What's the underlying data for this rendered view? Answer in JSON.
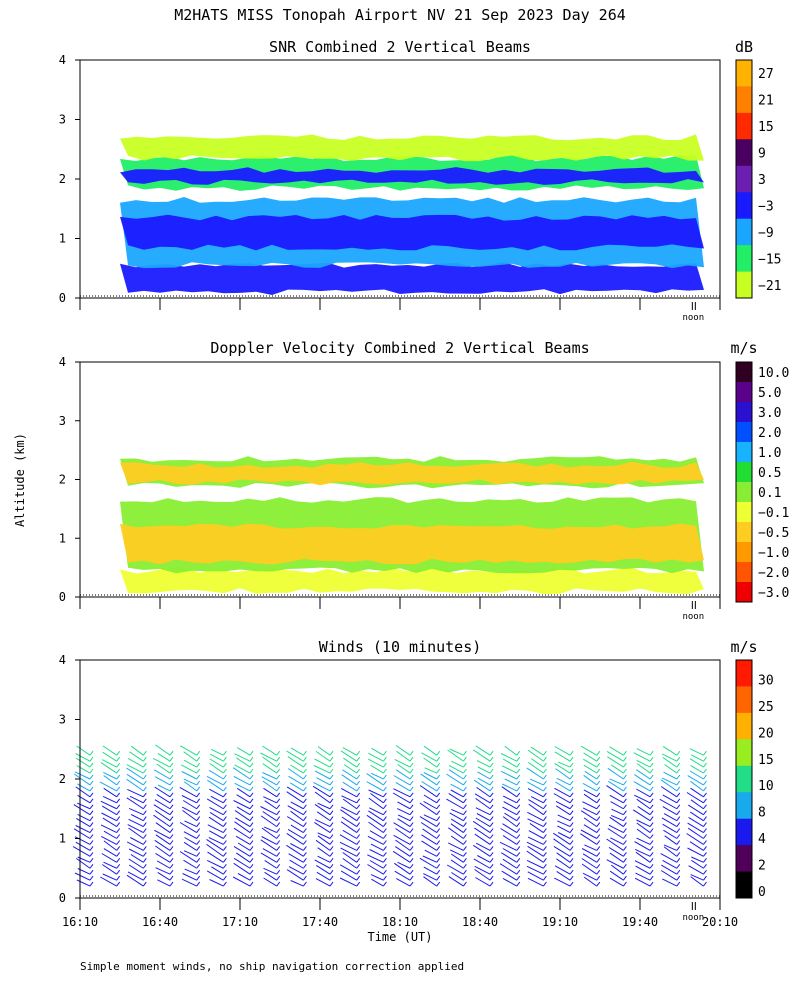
{
  "title": "M2HATS MISS Tonopah Airport NV  21 Sep 2023 Day 264",
  "ylabel": "Altitude (km)",
  "xlabel": "Time (UT)",
  "noon_label": "noon",
  "footnote": "Simple moment winds, no ship navigation correction applied",
  "chart_data": [
    {
      "type": "heatmap",
      "title": "SNR Combined 2 Vertical Beams",
      "units": "dB",
      "x_ticks": [],
      "y_ticks": [
        "0",
        "1",
        "2",
        "3",
        "4"
      ],
      "ylim": [
        0,
        4
      ],
      "x_range_hours": [
        16.1667,
        20.1667
      ],
      "colorbar_labels": [
        "27",
        "21",
        "15",
        "9",
        "3",
        "−3",
        "−9",
        "−15",
        "−21"
      ],
      "colorbar_colors": [
        "#ffb300",
        "#ff8000",
        "#ff2a00",
        "#4a0060",
        "#6a1fb0",
        "#1a1aff",
        "#1aa6ff",
        "#22ee66",
        "#c8ff22"
      ],
      "layers": [
        {
          "bottom": 0.1,
          "top": 0.55,
          "color": "#1a1aff"
        },
        {
          "bottom": 0.55,
          "top": 1.65,
          "color": "#1aa6ff"
        },
        {
          "bottom": 0.85,
          "top": 1.35,
          "color": "#1a1aff"
        },
        {
          "bottom": 1.85,
          "top": 2.35,
          "color": "#22ee66"
        },
        {
          "bottom": 1.95,
          "top": 2.15,
          "color": "#1a1aff"
        },
        {
          "bottom": 2.35,
          "top": 2.7,
          "color": "#c8ff22"
        }
      ]
    },
    {
      "type": "heatmap",
      "title": "Doppler Velocity Combined 2 Vertical Beams",
      "units": "m/s",
      "x_ticks": [],
      "y_ticks": [
        "0",
        "1",
        "2",
        "3",
        "4"
      ],
      "ylim": [
        0,
        4
      ],
      "x_range_hours": [
        16.1667,
        20.1667
      ],
      "colorbar_labels": [
        "10.0",
        "5.0",
        "3.0",
        "2.0",
        "1.0",
        "0.5",
        "0.1",
        "−0.1",
        "−0.5",
        "−1.0",
        "−2.0",
        "−3.0"
      ],
      "colorbar_colors": [
        "#300020",
        "#5a008a",
        "#2a10d0",
        "#0050ff",
        "#19b2ff",
        "#22dd33",
        "#88ee33",
        "#eeff33",
        "#ffcc22",
        "#ff9900",
        "#ff5500",
        "#ee0000"
      ],
      "layers": [
        {
          "bottom": 0.1,
          "top": 0.45,
          "color": "#eeff33"
        },
        {
          "bottom": 0.45,
          "top": 1.65,
          "color": "#88ee33"
        },
        {
          "bottom": 0.6,
          "top": 1.2,
          "color": "#ffcc22"
        },
        {
          "bottom": 1.9,
          "top": 2.35,
          "color": "#88ee33"
        },
        {
          "bottom": 1.95,
          "top": 2.25,
          "color": "#ffcc22"
        }
      ]
    },
    {
      "type": "scatter",
      "title": "Winds (10 minutes)",
      "units": "m/s",
      "x_ticks": [
        "16:10",
        "16:40",
        "17:10",
        "17:40",
        "18:10",
        "18:40",
        "19:10",
        "19:40",
        "20:10"
      ],
      "x_tick_hours": [
        16.1667,
        16.6667,
        17.1667,
        17.6667,
        18.1667,
        18.6667,
        19.1667,
        19.6667,
        20.1667
      ],
      "y_ticks": [
        "0",
        "1",
        "2",
        "3",
        "4"
      ],
      "ylim": [
        0,
        4
      ],
      "x_range_hours": [
        16.1667,
        20.1667
      ],
      "colorbar_labels": [
        "30",
        "25",
        "20",
        "15",
        "10",
        "8",
        "4",
        "2",
        "0"
      ],
      "colorbar_colors": [
        "#ff1a00",
        "#ff6600",
        "#ffb000",
        "#99ee22",
        "#22dd88",
        "#19aaee",
        "#1a1aee",
        "#50005a",
        "#000000"
      ],
      "wind_profiles": {
        "start_hour": 16.1667,
        "step_hours": 0.1667,
        "count": 24,
        "levels_km": [
          0.2,
          0.3,
          0.4,
          0.5,
          0.6,
          0.7,
          0.8,
          0.9,
          1.0,
          1.1,
          1.2,
          1.3,
          1.4,
          1.5,
          1.6,
          1.7,
          1.8,
          1.9,
          2.0,
          2.1,
          2.2,
          2.3,
          2.4
        ],
        "low_color": "#1a1aee",
        "mid_color": "#19aaee",
        "high_color": "#22dd88"
      }
    }
  ]
}
